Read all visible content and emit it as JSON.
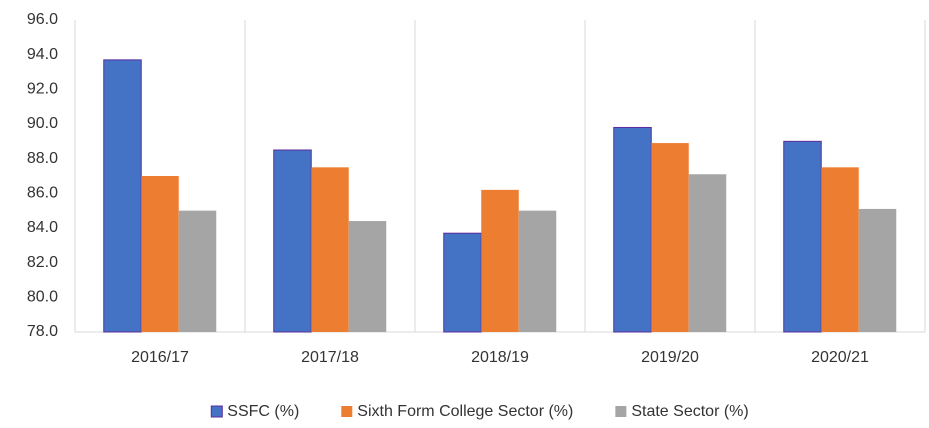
{
  "chart_data": {
    "type": "bar",
    "categories": [
      "2016/17",
      "2017/18",
      "2018/19",
      "2019/20",
      "2020/21"
    ],
    "series": [
      {
        "name": "SSFC (%)",
        "color": "#4472c4",
        "values": [
          93.7,
          88.5,
          83.7,
          89.8,
          89.0
        ]
      },
      {
        "name": "Sixth Form College Sector (%)",
        "color": "#ed7d31",
        "values": [
          87.0,
          87.5,
          86.2,
          88.9,
          87.5
        ]
      },
      {
        "name": "State Sector (%)",
        "color": "#a5a5a5",
        "values": [
          85.0,
          84.4,
          85.0,
          87.1,
          85.1
        ]
      }
    ],
    "ylim": [
      78,
      96
    ],
    "yticks": [
      {
        "value": 78,
        "label": "78.0"
      },
      {
        "value": 80,
        "label": "80.0"
      },
      {
        "value": 82,
        "label": "82.0"
      },
      {
        "value": 84,
        "label": "84.0"
      },
      {
        "value": 86,
        "label": "86.0"
      },
      {
        "value": 88,
        "label": "88.0"
      },
      {
        "value": 90,
        "label": "90.0"
      },
      {
        "value": 92,
        "label": "92.0"
      },
      {
        "value": 94,
        "label": "94.0"
      },
      {
        "value": 96,
        "label": "96.0"
      }
    ],
    "grid": false,
    "legend": "bottom"
  }
}
